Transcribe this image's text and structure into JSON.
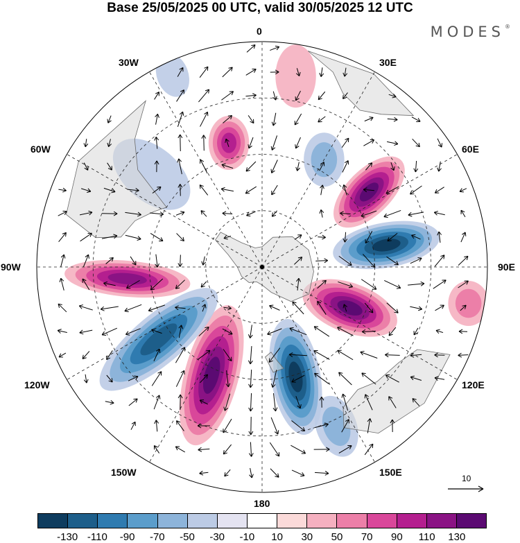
{
  "title": "Base 25/05/2025 00 UTC, valid 30/05/2025 12 UTC",
  "brand": "MODES",
  "brand_mark": "®",
  "longitude_labels": {
    "top": "0",
    "right": "90E",
    "bottom": "180",
    "left": "90W",
    "ne": "30E",
    "ene": "60E",
    "ese": "120E",
    "se": "150E",
    "nw": "30W",
    "wnw": "60W",
    "wsw": "120W",
    "sw": "150W"
  },
  "colorbar": {
    "colors": [
      "#0e3c5e",
      "#1d5e8a",
      "#2f7bb0",
      "#5b9dcb",
      "#8db4da",
      "#bccbe5",
      "#e4e3f1",
      "#ffffff",
      "#fbdad9",
      "#f5b0c0",
      "#ec7fa8",
      "#d9479a",
      "#b41f8f",
      "#8a1384",
      "#5b0a72"
    ],
    "tick_labels": [
      "-130",
      "-110",
      "-90",
      "-70",
      "-50",
      "-30",
      "-10",
      "10",
      "30",
      "50",
      "70",
      "90",
      "110",
      "130"
    ]
  },
  "reference_vector_label": "10",
  "anomalies": [
    {
      "lon": 10,
      "r": 0.86,
      "a": 0.14,
      "b": 0.09,
      "rot": 90,
      "value": 40,
      "icon": "pos-anomaly"
    },
    {
      "lon": 30,
      "r": 0.55,
      "a": 0.12,
      "b": 0.09,
      "rot": 90,
      "value": -60,
      "icon": "neg-anomaly"
    },
    {
      "lon": 55,
      "r": 0.58,
      "a": 0.2,
      "b": 0.1,
      "rot": 135,
      "value": 130,
      "icon": "pos-anomaly"
    },
    {
      "lon": 80,
      "r": 0.56,
      "a": 0.24,
      "b": 0.1,
      "rot": 170,
      "value": -130,
      "icon": "neg-anomaly"
    },
    {
      "lon": 100,
      "r": 0.93,
      "a": 0.1,
      "b": 0.09,
      "rot": 90,
      "value": 50,
      "icon": "pos-anomaly"
    },
    {
      "lon": 115,
      "r": 0.43,
      "a": 0.22,
      "b": 0.11,
      "rot": 20,
      "value": 130,
      "icon": "pos-anomaly"
    },
    {
      "lon": 155,
      "r": 0.78,
      "a": 0.14,
      "b": 0.09,
      "rot": 70,
      "value": -50,
      "icon": "neg-anomaly"
    },
    {
      "lon": 163,
      "r": 0.51,
      "a": 0.26,
      "b": 0.11,
      "rot": 80,
      "value": -130,
      "icon": "neg-anomaly"
    },
    {
      "lon": -155,
      "r": 0.53,
      "a": 0.32,
      "b": 0.12,
      "rot": 105,
      "value": 130,
      "icon": "pos-anomaly"
    },
    {
      "lon": -125,
      "r": 0.56,
      "a": 0.33,
      "b": 0.11,
      "rot": 140,
      "value": -110,
      "icon": "neg-anomaly"
    },
    {
      "lon": -95,
      "r": 0.6,
      "a": 0.28,
      "b": 0.08,
      "rot": 5,
      "value": 110,
      "icon": "pos-anomaly"
    },
    {
      "lon": -50,
      "r": 0.64,
      "a": 0.2,
      "b": 0.12,
      "rot": 40,
      "value": -40,
      "icon": "neg-anomaly"
    },
    {
      "lon": -15,
      "r": 0.57,
      "a": 0.12,
      "b": 0.09,
      "rot": 90,
      "value": 90,
      "icon": "pos-anomaly"
    },
    {
      "lon": -25,
      "r": 0.94,
      "a": 0.1,
      "b": 0.07,
      "rot": 70,
      "value": -30,
      "icon": "neg-anomaly"
    }
  ],
  "continents": [
    {
      "name": "antarctica",
      "pts": [
        [
          0,
          0.09
        ],
        [
          20,
          0.14
        ],
        [
          45,
          0.19
        ],
        [
          70,
          0.22
        ],
        [
          95,
          0.23
        ],
        [
          120,
          0.24
        ],
        [
          140,
          0.2
        ],
        [
          160,
          0.12
        ],
        [
          180,
          0.08
        ],
        [
          200,
          0.07
        ],
        [
          220,
          0.09
        ],
        [
          245,
          0.1
        ],
        [
          270,
          0.11
        ],
        [
          290,
          0.16
        ],
        [
          300,
          0.24
        ],
        [
          310,
          0.24
        ],
        [
          320,
          0.14
        ],
        [
          340,
          0.09
        ]
      ]
    },
    {
      "name": "south-america",
      "pts": [
        [
          282,
          0.64
        ],
        [
          290,
          0.6
        ],
        [
          297,
          0.54
        ],
        [
          302,
          0.5
        ],
        [
          308,
          0.7
        ],
        [
          315,
          0.8
        ],
        [
          325,
          0.9
        ],
        [
          300,
          0.94
        ],
        [
          285,
          0.9
        ],
        [
          280,
          0.75
        ]
      ]
    },
    {
      "name": "africa",
      "pts": [
        [
          12,
          0.98
        ],
        [
          20,
          0.92
        ],
        [
          25,
          0.85
        ],
        [
          32,
          0.82
        ],
        [
          38,
          0.86
        ],
        [
          45,
          0.95
        ],
        [
          30,
          0.99
        ]
      ]
    },
    {
      "name": "australia",
      "pts": [
        [
          115,
          0.92
        ],
        [
          118,
          0.78
        ],
        [
          125,
          0.74
        ],
        [
          135,
          0.72
        ],
        [
          142,
          0.69
        ],
        [
          150,
          0.72
        ],
        [
          153,
          0.8
        ],
        [
          145,
          0.9
        ],
        [
          130,
          0.94
        ]
      ]
    },
    {
      "name": "new-zealand",
      "pts": [
        [
          168,
          0.46
        ],
        [
          171,
          0.42
        ],
        [
          174,
          0.38
        ],
        [
          178,
          0.4
        ],
        [
          174,
          0.47
        ]
      ]
    }
  ]
}
